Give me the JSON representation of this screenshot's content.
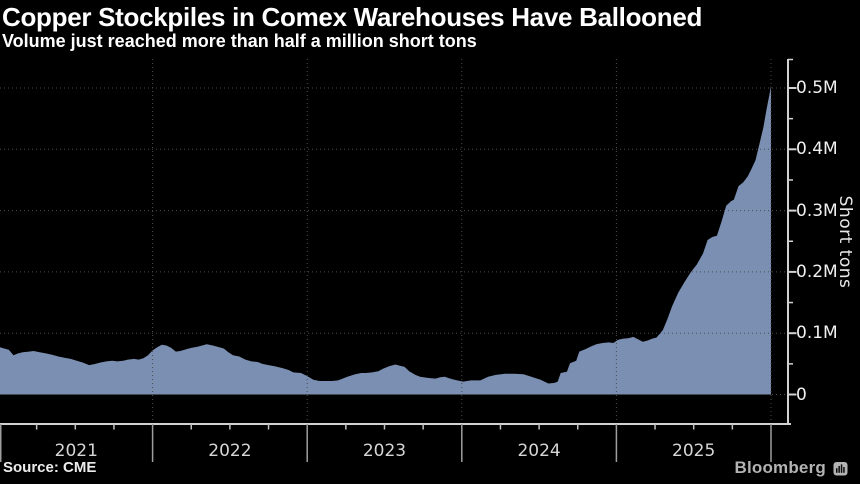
{
  "header": {
    "title": "Copper Stockpiles in Comex Warehouses Have Ballooned",
    "subtitle": "Volume just reached more than half a million short tons"
  },
  "footer": {
    "source": "Source: CME",
    "brand": "Bloomberg",
    "brand_icon": "bloomberg-terminal-icon"
  },
  "colors": {
    "background": "#000000",
    "title": "#ffffff",
    "subtitle": "#ffffff",
    "area_fill": "#7a8fb1",
    "grid": "#4d4d4d",
    "axis": "#d2d2d2",
    "tick": "#c0c0c0",
    "year_divider": "#9e9e9e",
    "tick_label": "#f0f0f0",
    "year_label": "#d6d6d6",
    "axis_title": "#e8e8e8",
    "source": "#ececec",
    "brand": "#b3b3b3"
  },
  "chart_data": {
    "type": "area",
    "title": "Copper Stockpiles in Comex Warehouses Have Ballooned",
    "subtitle": "Volume just reached more than half a million short tons",
    "ylabel": "Short tons",
    "xlabel": "",
    "grid": "dotted",
    "legend": "none",
    "x_axis": {
      "start_year": 2021,
      "end_year": 2026,
      "year_labels": [
        "2021",
        "2022",
        "2023",
        "2024",
        "2025"
      ],
      "minor_ticks": "quarterly",
      "grid": "dotted-vertical-at-year-boundaries"
    },
    "y_axis": {
      "side": "right",
      "min": 0,
      "max": 550000,
      "unit": "short tons",
      "minor_tick_step": 50000,
      "major_ticks": [
        {
          "value": 0,
          "label": "0"
        },
        {
          "value": 100000,
          "label": "0.1M"
        },
        {
          "value": 200000,
          "label": "0.2M"
        },
        {
          "value": 300000,
          "label": "0.3M"
        },
        {
          "value": 400000,
          "label": "0.4M"
        },
        {
          "value": 500000,
          "label": "0.5M"
        }
      ]
    },
    "series": [
      {
        "name": "Copper stockpiles in Comex warehouses",
        "unit": "short tons",
        "x_unit": "decimal year",
        "points": [
          [
            2021.01,
            77000
          ],
          [
            2021.04,
            75000
          ],
          [
            2021.07,
            73000
          ],
          [
            2021.1,
            64000
          ],
          [
            2021.13,
            67000
          ],
          [
            2021.16,
            69000
          ],
          [
            2021.2,
            70000
          ],
          [
            2021.23,
            71000
          ],
          [
            2021.27,
            69000
          ],
          [
            2021.31,
            67000
          ],
          [
            2021.35,
            65000
          ],
          [
            2021.39,
            62000
          ],
          [
            2021.43,
            60000
          ],
          [
            2021.47,
            58000
          ],
          [
            2021.51,
            55000
          ],
          [
            2021.55,
            52000
          ],
          [
            2021.59,
            48000
          ],
          [
            2021.63,
            50000
          ],
          [
            2021.66,
            52000
          ],
          [
            2021.7,
            54000
          ],
          [
            2021.74,
            55000
          ],
          [
            2021.77,
            54000
          ],
          [
            2021.81,
            55000
          ],
          [
            2021.84,
            57000
          ],
          [
            2021.88,
            58000
          ],
          [
            2021.91,
            57000
          ],
          [
            2021.94,
            59000
          ],
          [
            2021.97,
            64000
          ],
          [
            2022.0,
            72000
          ],
          [
            2022.03,
            77000
          ],
          [
            2022.06,
            81000
          ],
          [
            2022.09,
            80000
          ],
          [
            2022.12,
            76000
          ],
          [
            2022.15,
            70000
          ],
          [
            2022.18,
            71000
          ],
          [
            2022.22,
            74000
          ],
          [
            2022.25,
            76000
          ],
          [
            2022.29,
            78000
          ],
          [
            2022.32,
            80000
          ],
          [
            2022.35,
            82000
          ],
          [
            2022.39,
            80000
          ],
          [
            2022.42,
            78000
          ],
          [
            2022.46,
            75000
          ],
          [
            2022.49,
            69000
          ],
          [
            2022.52,
            64000
          ],
          [
            2022.56,
            62000
          ],
          [
            2022.6,
            57000
          ],
          [
            2022.64,
            54000
          ],
          [
            2022.68,
            53000
          ],
          [
            2022.71,
            50000
          ],
          [
            2022.75,
            48000
          ],
          [
            2022.79,
            46000
          ],
          [
            2022.84,
            43000
          ],
          [
            2022.88,
            40000
          ],
          [
            2022.91,
            36000
          ],
          [
            2022.96,
            35000
          ],
          [
            2023.0,
            30000
          ],
          [
            2023.04,
            24000
          ],
          [
            2023.08,
            22000
          ],
          [
            2023.12,
            22000
          ],
          [
            2023.16,
            22000
          ],
          [
            2023.2,
            23000
          ],
          [
            2023.26,
            29000
          ],
          [
            2023.31,
            33000
          ],
          [
            2023.35,
            35000
          ],
          [
            2023.38,
            35000
          ],
          [
            2023.42,
            36000
          ],
          [
            2023.46,
            38000
          ],
          [
            2023.49,
            42000
          ],
          [
            2023.53,
            46000
          ],
          [
            2023.57,
            49000
          ],
          [
            2023.6,
            47000
          ],
          [
            2023.63,
            45000
          ],
          [
            2023.66,
            38000
          ],
          [
            2023.7,
            32000
          ],
          [
            2023.73,
            29000
          ],
          [
            2023.78,
            27000
          ],
          [
            2023.83,
            26000
          ],
          [
            2023.86,
            28000
          ],
          [
            2023.89,
            29000
          ],
          [
            2023.91,
            27000
          ],
          [
            2023.94,
            25000
          ],
          [
            2023.97,
            23000
          ],
          [
            2024.01,
            21000
          ],
          [
            2024.06,
            23000
          ],
          [
            2024.12,
            23000
          ],
          [
            2024.17,
            29000
          ],
          [
            2024.22,
            32000
          ],
          [
            2024.28,
            34000
          ],
          [
            2024.34,
            34000
          ],
          [
            2024.4,
            33000
          ],
          [
            2024.46,
            28000
          ],
          [
            2024.51,
            24000
          ],
          [
            2024.56,
            18000
          ],
          [
            2024.6,
            19000
          ],
          [
            2024.62,
            21000
          ],
          [
            2024.64,
            35000
          ],
          [
            2024.68,
            37000
          ],
          [
            2024.7,
            51000
          ],
          [
            2024.74,
            55000
          ],
          [
            2024.76,
            70000
          ],
          [
            2024.8,
            74000
          ],
          [
            2024.84,
            79000
          ],
          [
            2024.87,
            82000
          ],
          [
            2024.91,
            84000
          ],
          [
            2024.95,
            85000
          ],
          [
            2024.98,
            84000
          ],
          [
            2025.01,
            89000
          ],
          [
            2025.04,
            91000
          ],
          [
            2025.08,
            92000
          ],
          [
            2025.11,
            94000
          ],
          [
            2025.14,
            90000
          ],
          [
            2025.17,
            86000
          ],
          [
            2025.2,
            88000
          ],
          [
            2025.23,
            91000
          ],
          [
            2025.26,
            93000
          ],
          [
            2025.3,
            105000
          ],
          [
            2025.33,
            123000
          ],
          [
            2025.36,
            144000
          ],
          [
            2025.4,
            166000
          ],
          [
            2025.44,
            183000
          ],
          [
            2025.48,
            199000
          ],
          [
            2025.52,
            212000
          ],
          [
            2025.56,
            230000
          ],
          [
            2025.59,
            252000
          ],
          [
            2025.62,
            257000
          ],
          [
            2025.65,
            259000
          ],
          [
            2025.68,
            282000
          ],
          [
            2025.71,
            308000
          ],
          [
            2025.74,
            315000
          ],
          [
            2025.76,
            318000
          ],
          [
            2025.79,
            340000
          ],
          [
            2025.82,
            346000
          ],
          [
            2025.85,
            356000
          ],
          [
            2025.87,
            366000
          ],
          [
            2025.9,
            382000
          ],
          [
            2025.93,
            414000
          ],
          [
            2025.95,
            435000
          ],
          [
            2025.97,
            464000
          ],
          [
            2025.99,
            490000
          ],
          [
            2026.0,
            504000
          ]
        ]
      }
    ]
  }
}
